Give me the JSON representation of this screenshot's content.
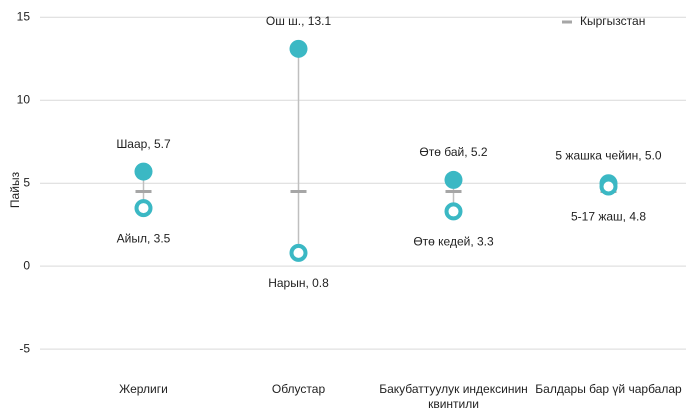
{
  "chart_data": {
    "type": "dot-range",
    "y_label": "Пайыз",
    "categories": [
      "Жерлиги",
      "Облустар",
      "Бакубаттуулук индексинин квинтили",
      "Балдары бар үй чарбалар"
    ],
    "series": [
      {
        "color": "#3bb8c4",
        "marker": "filled",
        "values": [
          5.7,
          13.1,
          5.2,
          5.0
        ],
        "value_labels": [
          "Шаар, 5.7",
          "Ош ш., 13.1",
          "Өтө бай, 5.2",
          "5 жашка чейин, 5.0"
        ]
      },
      {
        "color": "#3bb8c4",
        "marker": "hollow",
        "values": [
          3.5,
          0.8,
          3.3,
          4.8
        ],
        "value_labels": [
          "Айыл, 3.5",
          "Нарын, 0.8",
          "Өтө кедей, 3.3",
          "5-17 жаш, 4.8"
        ]
      },
      {
        "name": "Кыргызстан",
        "color": "#a6a6a6",
        "marker": "dash",
        "values": [
          4.5,
          4.5,
          4.5,
          4.5
        ]
      }
    ],
    "ylim": [
      -6.5,
      15.5
    ],
    "yticks": [
      -5,
      0,
      5,
      10,
      15
    ],
    "grid": true,
    "legend": "top-right"
  }
}
